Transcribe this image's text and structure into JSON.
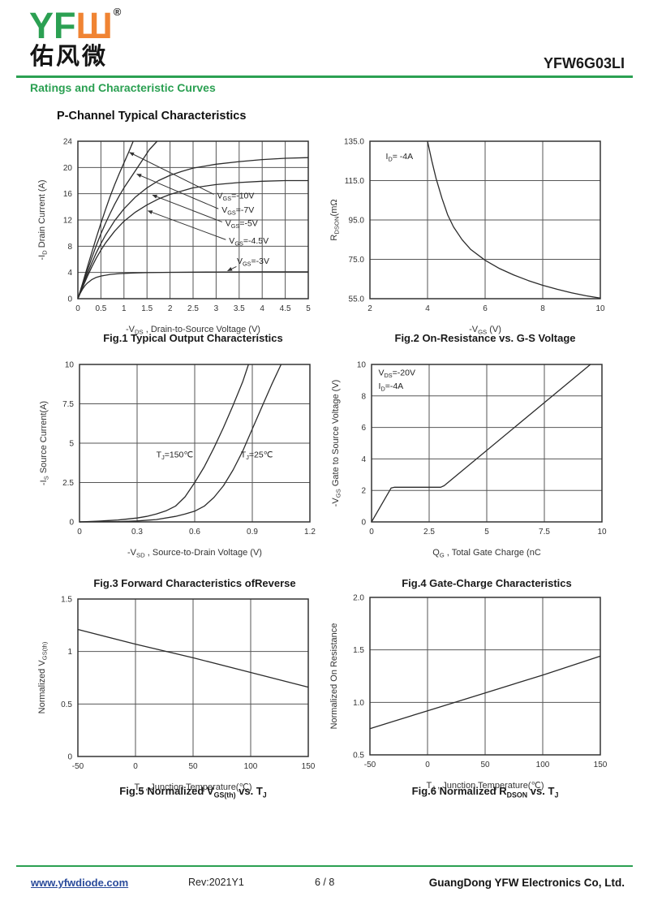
{
  "colors": {
    "brand_green": "#2ba052",
    "brand_orange": "#f08433",
    "link_blue": "#2a4b9b",
    "chart_line": "#2b2b2b"
  },
  "header": {
    "logo_yf": "YF",
    "logo_w": "Ш",
    "logo_reg": "®",
    "logo_cn": "佑风微",
    "part_number": "YFW6G03LI",
    "section_title": "Ratings and Characteristic Curves",
    "page_heading": "P-Channel Typical Characteristics"
  },
  "footer": {
    "website": "www.yfwdiode.com",
    "revision": "Rev:2021Y1",
    "page_indicator": "6 / 8",
    "company": "GuangDong YFW Electronics Co, Ltd."
  },
  "chart_data": [
    {
      "id": "fig1",
      "type": "line",
      "title": "Fig.1 Typical Output Characteristics",
      "xlabel": "-V~DS~ , Drain-to-Source Voltage (V)",
      "ylabel": "-I~D~ Drain Current (A)",
      "xlim": [
        0,
        5
      ],
      "ylim": [
        0,
        24
      ],
      "grid": true,
      "legend": "inline-labels",
      "xticks": [
        [
          0,
          "0"
        ],
        [
          0.5,
          "0.5"
        ],
        [
          1,
          "1"
        ],
        [
          1.5,
          "1.5"
        ],
        [
          2,
          "2"
        ],
        [
          2.5,
          "2.5"
        ],
        [
          3,
          "3"
        ],
        [
          3.5,
          "3.5"
        ],
        [
          4,
          "4"
        ],
        [
          4.5,
          "4.5"
        ],
        [
          5,
          "5"
        ]
      ],
      "yticks": [
        [
          0,
          "0"
        ],
        [
          4,
          "4"
        ],
        [
          8,
          "8"
        ],
        [
          12,
          "12"
        ],
        [
          16,
          "16"
        ],
        [
          20,
          "20"
        ],
        [
          24,
          "24"
        ]
      ],
      "series": [
        {
          "name": "VGS=-10V",
          "points": [
            [
              0,
              0
            ],
            [
              0.1,
              2.3
            ],
            [
              0.2,
              4.7
            ],
            [
              0.3,
              7.0
            ],
            [
              0.4,
              9.3
            ],
            [
              0.5,
              11.5
            ],
            [
              0.6,
              13.6
            ],
            [
              0.7,
              15.6
            ],
            [
              0.8,
              17.4
            ],
            [
              0.9,
              19.1
            ],
            [
              1.0,
              20.7
            ],
            [
              1.1,
              22.3
            ],
            [
              1.2,
              24
            ]
          ]
        },
        {
          "name": "VGS=-7V",
          "points": [
            [
              0,
              0
            ],
            [
              0.1,
              2.1
            ],
            [
              0.2,
              4.2
            ],
            [
              0.3,
              6.2
            ],
            [
              0.4,
              8.1
            ],
            [
              0.5,
              9.9
            ],
            [
              0.6,
              11.5
            ],
            [
              0.7,
              13.0
            ],
            [
              0.8,
              14.4
            ],
            [
              0.9,
              15.7
            ],
            [
              1.0,
              16.9
            ],
            [
              1.2,
              19.0
            ],
            [
              1.4,
              21.1
            ],
            [
              1.55,
              22.7
            ],
            [
              1.72,
              24
            ]
          ]
        },
        {
          "name": "VGS=-5V",
          "points": [
            [
              0,
              0
            ],
            [
              0.1,
              1.9
            ],
            [
              0.2,
              3.7
            ],
            [
              0.3,
              5.4
            ],
            [
              0.4,
              7.0
            ],
            [
              0.5,
              8.4
            ],
            [
              0.6,
              9.7
            ],
            [
              0.8,
              11.9
            ],
            [
              1.0,
              13.7
            ],
            [
              1.25,
              15.5
            ],
            [
              1.5,
              16.9
            ],
            [
              1.75,
              18.0
            ],
            [
              2.0,
              18.8
            ],
            [
              2.25,
              19.4
            ],
            [
              2.5,
              19.9
            ],
            [
              3.0,
              20.5
            ],
            [
              3.5,
              20.9
            ],
            [
              4.0,
              21.2
            ],
            [
              4.5,
              21.4
            ],
            [
              5.0,
              21.5
            ]
          ]
        },
        {
          "name": "VGS=-4.5V",
          "points": [
            [
              0,
              0
            ],
            [
              0.1,
              1.7
            ],
            [
              0.2,
              3.3
            ],
            [
              0.3,
              4.8
            ],
            [
              0.4,
              6.2
            ],
            [
              0.5,
              7.4
            ],
            [
              0.6,
              8.5
            ],
            [
              0.8,
              10.3
            ],
            [
              1.0,
              11.8
            ],
            [
              1.25,
              13.2
            ],
            [
              1.5,
              14.3
            ],
            [
              1.75,
              15.2
            ],
            [
              2.0,
              15.9
            ],
            [
              2.5,
              16.9
            ],
            [
              3.0,
              17.4
            ],
            [
              3.5,
              17.7
            ],
            [
              4.0,
              17.9
            ],
            [
              4.5,
              18.0
            ],
            [
              5.0,
              18.0
            ]
          ]
        },
        {
          "name": "VGS=-3V",
          "points": [
            [
              0,
              0
            ],
            [
              0.05,
              0.8
            ],
            [
              0.1,
              1.45
            ],
            [
              0.15,
              1.95
            ],
            [
              0.2,
              2.35
            ],
            [
              0.3,
              2.9
            ],
            [
              0.4,
              3.25
            ],
            [
              0.5,
              3.45
            ],
            [
              0.7,
              3.7
            ],
            [
              0.9,
              3.82
            ],
            [
              1.2,
              3.92
            ],
            [
              1.5,
              3.97
            ],
            [
              2.0,
              4.02
            ],
            [
              2.5,
              4.05
            ],
            [
              3.0,
              4.07
            ],
            [
              4.0,
              4.09
            ],
            [
              5.0,
              4.1
            ]
          ]
        }
      ],
      "annotations": [
        {
          "text": "V~GS~=-10V",
          "x": 3.02,
          "y": 15.3,
          "leader": [
            2.95,
            15.9,
            1.12,
            22.3
          ]
        },
        {
          "text": "V~GS~=-7V",
          "x": 3.12,
          "y": 13.1,
          "leader": [
            3.05,
            13.7,
            1.28,
            19.0
          ]
        },
        {
          "text": "V~GS~=-5V",
          "x": 3.2,
          "y": 11.1,
          "leader": [
            3.13,
            11.7,
            1.62,
            15.8
          ]
        },
        {
          "text": "V~GS~=-4.5V",
          "x": 3.28,
          "y": 8.4,
          "leader": [
            3.21,
            9.0,
            1.52,
            13.4
          ]
        },
        {
          "text": "V~GS~=-3V",
          "x": 3.45,
          "y": 5.3,
          "leader": [
            3.44,
            4.9,
            3.25,
            4.25
          ]
        }
      ]
    },
    {
      "id": "fig2",
      "type": "line",
      "title": "Fig.2 On-Resistance vs. G-S Voltage",
      "xlabel": "-V~GS~ (V)",
      "ylabel": "R~DSON~(mΩ",
      "xlim": [
        2,
        10
      ],
      "ylim": [
        55,
        135
      ],
      "grid": true,
      "legend": "none",
      "xticks": [
        [
          2,
          "2"
        ],
        [
          4,
          "4"
        ],
        [
          6,
          "6"
        ],
        [
          8,
          "8"
        ],
        [
          10,
          "10"
        ]
      ],
      "yticks": [
        [
          55,
          "55.0"
        ],
        [
          75,
          "75.0"
        ],
        [
          95,
          "95.0"
        ],
        [
          115,
          "115.0"
        ],
        [
          135,
          "135.0"
        ]
      ],
      "series": [
        {
          "name": "RDSON",
          "points": [
            [
              4.0,
              135
            ],
            [
              4.15,
              125
            ],
            [
              4.3,
              116
            ],
            [
              4.5,
              106
            ],
            [
              4.7,
              97.5
            ],
            [
              4.9,
              91.5
            ],
            [
              5.2,
              85
            ],
            [
              5.5,
              80
            ],
            [
              6.0,
              74.5
            ],
            [
              6.5,
              70.3
            ],
            [
              7.0,
              67
            ],
            [
              7.5,
              64.2
            ],
            [
              8.0,
              61.8
            ],
            [
              8.5,
              59.8
            ],
            [
              9.0,
              58
            ],
            [
              9.5,
              56.5
            ],
            [
              10.0,
              55.3
            ]
          ]
        }
      ],
      "annotations": [
        {
          "text": "I~D~= -4A",
          "x": 2.55,
          "y": 126
        }
      ]
    },
    {
      "id": "fig3",
      "type": "line",
      "title": "Fig.3 Forward Characteristics ofReverse",
      "xlabel": "-V~SD~ , Source-to-Drain Voltage (V)",
      "ylabel": "-I~S~ Source Current(A)",
      "xlim": [
        0,
        1.2
      ],
      "ylim": [
        0,
        10
      ],
      "grid": true,
      "legend": "inline-labels",
      "xticks": [
        [
          0,
          "0"
        ],
        [
          0.3,
          "0.3"
        ],
        [
          0.6,
          "0.6"
        ],
        [
          0.9,
          "0.9"
        ],
        [
          1.2,
          "1.2"
        ]
      ],
      "yticks": [
        [
          0,
          "0"
        ],
        [
          2.5,
          "2.5"
        ],
        [
          5,
          "5"
        ],
        [
          7.5,
          "7.5"
        ],
        [
          10,
          "10"
        ]
      ],
      "series": [
        {
          "name": "TJ=150C",
          "points": [
            [
              0,
              0
            ],
            [
              0.1,
              0.05
            ],
            [
              0.2,
              0.12
            ],
            [
              0.3,
              0.25
            ],
            [
              0.35,
              0.35
            ],
            [
              0.4,
              0.5
            ],
            [
              0.45,
              0.7
            ],
            [
              0.5,
              1.0
            ],
            [
              0.55,
              1.6
            ],
            [
              0.6,
              2.5
            ],
            [
              0.65,
              3.5
            ],
            [
              0.7,
              4.7
            ],
            [
              0.75,
              6.0
            ],
            [
              0.8,
              7.4
            ],
            [
              0.85,
              8.9
            ],
            [
              0.88,
              10
            ]
          ]
        },
        {
          "name": "TJ=25C",
          "points": [
            [
              0,
              0
            ],
            [
              0.2,
              0.02
            ],
            [
              0.3,
              0.06
            ],
            [
              0.4,
              0.15
            ],
            [
              0.5,
              0.35
            ],
            [
              0.55,
              0.5
            ],
            [
              0.6,
              0.68
            ],
            [
              0.65,
              1.0
            ],
            [
              0.7,
              1.55
            ],
            [
              0.75,
              2.3
            ],
            [
              0.8,
              3.3
            ],
            [
              0.85,
              4.5
            ],
            [
              0.9,
              5.9
            ],
            [
              0.95,
              7.3
            ],
            [
              1.0,
              8.7
            ],
            [
              1.05,
              10
            ]
          ]
        }
      ],
      "annotations": [
        {
          "text": "T~J~=150℃",
          "x": 0.4,
          "y": 4.1
        },
        {
          "text": "T~J~=25℃",
          "x": 0.84,
          "y": 4.1
        }
      ]
    },
    {
      "id": "fig4",
      "type": "line",
      "title": "Fig.4 Gate-Charge Characteristics",
      "xlabel": "Q~G~ , Total Gate Charge (nC",
      "ylabel": "-V~GS~ Gate to Source Voltage (V)",
      "xlim": [
        0,
        10
      ],
      "ylim": [
        0,
        10
      ],
      "grid": true,
      "legend": "none",
      "xticks": [
        [
          0,
          "0"
        ],
        [
          2.5,
          "2.5"
        ],
        [
          5,
          "5"
        ],
        [
          7.5,
          "7.5"
        ],
        [
          10,
          "10"
        ]
      ],
      "yticks": [
        [
          0,
          "0"
        ],
        [
          2,
          "2"
        ],
        [
          4,
          "4"
        ],
        [
          6,
          "6"
        ],
        [
          8,
          "8"
        ],
        [
          10,
          "10"
        ]
      ],
      "series": [
        {
          "name": "gate-charge",
          "points": [
            [
              0,
              0
            ],
            [
              0.85,
              2.15
            ],
            [
              1.0,
              2.2
            ],
            [
              3.0,
              2.2
            ],
            [
              3.15,
              2.3
            ],
            [
              9.5,
              10
            ]
          ]
        }
      ],
      "annotations": [
        {
          "text": "V~DS~=-20V",
          "x": 0.3,
          "y": 9.3
        },
        {
          "text": "I~D~=-4A",
          "x": 0.3,
          "y": 8.45
        }
      ]
    },
    {
      "id": "fig5",
      "type": "line",
      "title": "Fig.5 Normalized V~GS(th)~ vs. T~J~",
      "xlabel": "T~J~ , Junction Temperature(℃)",
      "ylabel": "Normalized V~GS(th)~",
      "xlim": [
        -50,
        150
      ],
      "ylim": [
        0,
        1.5
      ],
      "grid": true,
      "legend": "none",
      "xticks": [
        [
          -50,
          "-50"
        ],
        [
          0,
          "0"
        ],
        [
          50,
          "50"
        ],
        [
          100,
          "100"
        ],
        [
          150,
          "150"
        ]
      ],
      "yticks": [
        [
          0,
          "0"
        ],
        [
          0.5,
          "0.5"
        ],
        [
          1,
          "1"
        ],
        [
          1.5,
          "1.5"
        ]
      ],
      "series": [
        {
          "name": "normalized VGS(th)",
          "points": [
            [
              -50,
              1.21
            ],
            [
              0,
              1.07
            ],
            [
              50,
              0.94
            ],
            [
              100,
              0.8
            ],
            [
              150,
              0.66
            ]
          ]
        }
      ],
      "annotations": []
    },
    {
      "id": "fig6",
      "type": "line",
      "title": "Fig.6 Normalized R~DSON~ vs. T~J~",
      "xlabel": "T~J~ , Junction Temperature(℃)",
      "ylabel": "Normalized On Resistance",
      "xlim": [
        -50,
        150
      ],
      "ylim": [
        0.5,
        2.0
      ],
      "grid": true,
      "legend": "none",
      "xticks": [
        [
          -50,
          "-50"
        ],
        [
          0,
          "0"
        ],
        [
          50,
          "50"
        ],
        [
          100,
          "100"
        ],
        [
          150,
          "150"
        ]
      ],
      "yticks": [
        [
          0.5,
          "0.5"
        ],
        [
          1,
          "1.0"
        ],
        [
          1.5,
          "1.5"
        ],
        [
          2,
          "2.0"
        ]
      ],
      "series": [
        {
          "name": "normalized RDSON",
          "points": [
            [
              -50,
              0.75
            ],
            [
              0,
              0.92
            ],
            [
              50,
              1.09
            ],
            [
              100,
              1.26
            ],
            [
              150,
              1.44
            ]
          ]
        }
      ],
      "annotations": []
    }
  ]
}
